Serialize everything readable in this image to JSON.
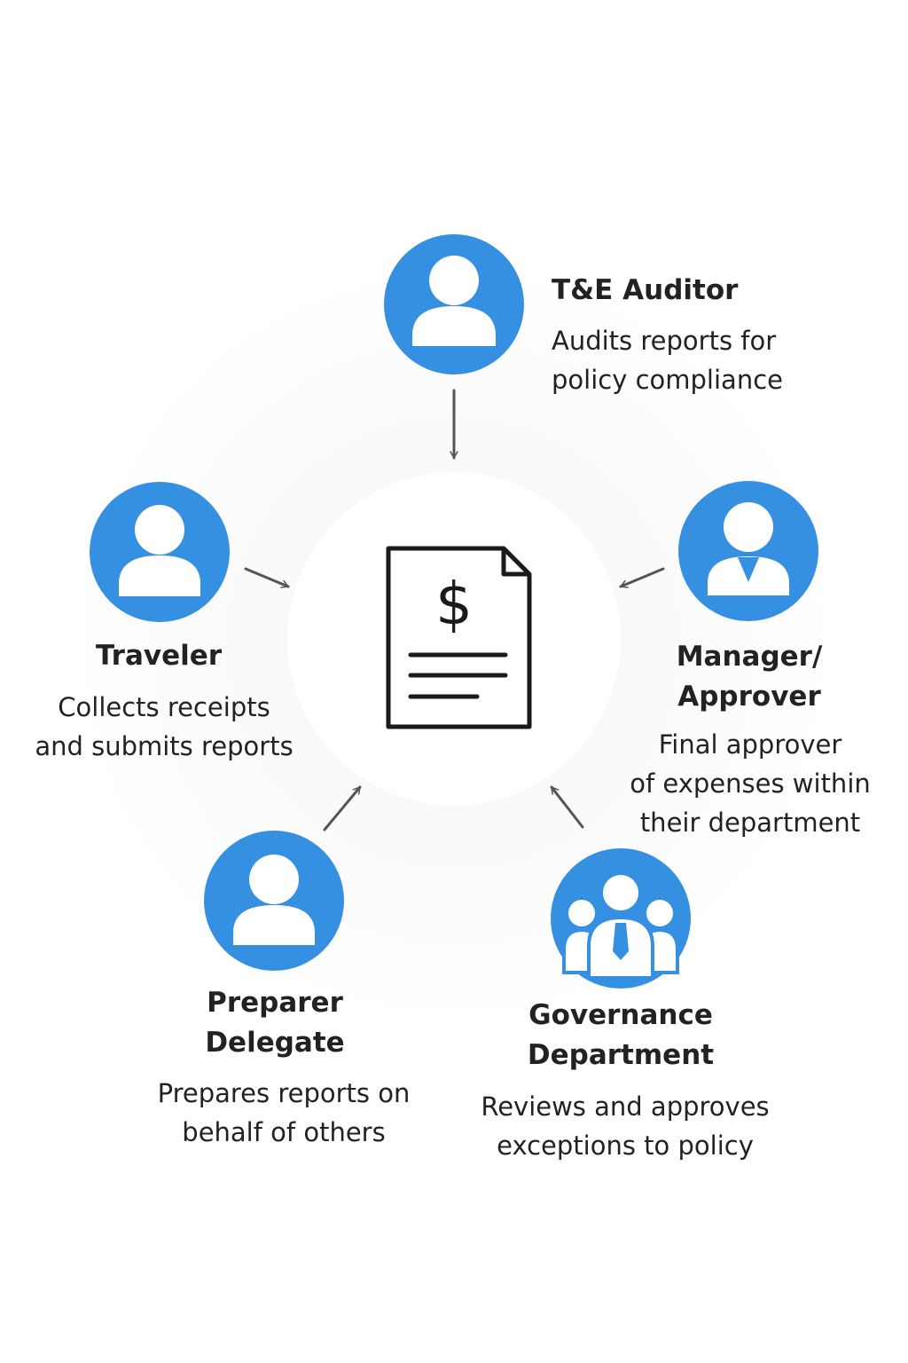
{
  "colors": {
    "accent": "#3590e2",
    "text": "#222222",
    "arrow": "#555555",
    "document_stroke": "#1a1a1a"
  },
  "center_document": {
    "icon": "invoice-dollar-document-icon",
    "symbol": "$"
  },
  "roles": {
    "auditor": {
      "icon": "person-icon",
      "title_lines": [
        "T&E Auditor"
      ],
      "desc_lines": [
        "Audits reports for",
        "policy compliance"
      ]
    },
    "traveler": {
      "icon": "person-icon",
      "title_lines": [
        "Traveler"
      ],
      "desc_lines": [
        "Collects receipts",
        "and submits reports"
      ]
    },
    "manager": {
      "icon": "person-with-collar-icon",
      "title_lines": [
        "Manager/",
        "Approver"
      ],
      "desc_lines": [
        "Final approver",
        "of expenses within",
        "their department"
      ]
    },
    "preparer": {
      "icon": "person-icon",
      "title_lines": [
        "Preparer",
        "Delegate"
      ],
      "desc_lines": [
        "Prepares reports on",
        "behalf of others"
      ]
    },
    "governance": {
      "icon": "group-icon",
      "title_lines": [
        "Governance",
        "Department"
      ],
      "desc_lines": [
        "Reviews and approves",
        "exceptions to policy"
      ]
    }
  }
}
